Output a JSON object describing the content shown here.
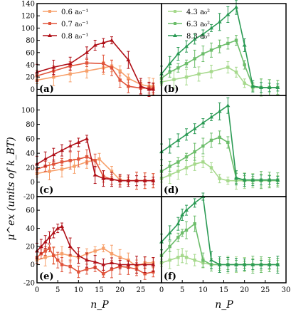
{
  "ylabel": "μ^ex (units of k_BT)",
  "xlabel": "n_P",
  "legend_left": [
    "0.6 a₀⁻¹",
    "0.7 a₀⁻¹",
    "0.8 a₀⁻¹"
  ],
  "legend_right": [
    "4.3 a₀²",
    "6.3 a₀²",
    "8.3 a₀²"
  ],
  "colors": {
    "orange": [
      "#f7a06b",
      "#e0533a",
      "#b01018"
    ],
    "green": [
      "#a6d98c",
      "#6cbd6a",
      "#2a9a54"
    ]
  },
  "chart_data": [
    {
      "panel": "(a)",
      "type": "line",
      "xlim": [
        0,
        30
      ],
      "ylim": [
        -10,
        140
      ],
      "yticks": [
        0,
        20,
        40,
        60,
        80,
        100,
        120,
        140
      ],
      "series": [
        {
          "name": "0.6 a₀⁻¹",
          "color": "#f7a06b",
          "x": [
            0,
            4,
            8,
            12,
            16,
            18,
            20,
            22,
            25,
            27,
            28
          ],
          "y": [
            15,
            20,
            25,
            30,
            35,
            38,
            30,
            18,
            8,
            5,
            5
          ]
        },
        {
          "name": "0.7 a₀⁻¹",
          "color": "#e0533a",
          "x": [
            0,
            4,
            8,
            12,
            16,
            18,
            20,
            22,
            25,
            27,
            28
          ],
          "y": [
            22,
            30,
            38,
            43,
            42,
            35,
            15,
            5,
            2,
            2,
            2
          ]
        },
        {
          "name": "0.8 a₀⁻¹",
          "color": "#b01018",
          "x": [
            0,
            4,
            8,
            12,
            14,
            16,
            18,
            22,
            25,
            27,
            28
          ],
          "y": [
            28,
            36,
            42,
            60,
            72,
            76,
            80,
            48,
            5,
            0,
            0
          ]
        }
      ]
    },
    {
      "panel": "(b)",
      "type": "line",
      "xlim": [
        0,
        30
      ],
      "ylim": [
        -10,
        140
      ],
      "series": [
        {
          "name": "4.3 a₀²",
          "color": "#a6d98c",
          "x": [
            0,
            3,
            6,
            9,
            12,
            16,
            18,
            20,
            22,
            24,
            26,
            28
          ],
          "y": [
            12,
            16,
            20,
            25,
            29,
            36,
            28,
            10,
            3,
            3,
            3,
            3
          ]
        },
        {
          "name": "6.3 a₀²",
          "color": "#6cbd6a",
          "x": [
            0,
            2,
            4,
            6,
            8,
            10,
            12,
            14,
            16,
            18,
            20,
            22,
            24,
            26,
            28
          ],
          "y": [
            18,
            28,
            35,
            42,
            50,
            58,
            64,
            70,
            75,
            80,
            40,
            5,
            3,
            3,
            3
          ]
        },
        {
          "name": "8.3 a₀²",
          "color": "#2a9a54",
          "x": [
            0,
            2,
            4,
            6,
            8,
            10,
            12,
            14,
            16,
            18,
            20,
            22,
            24,
            26,
            28
          ],
          "y": [
            25,
            42,
            58,
            70,
            82,
            90,
            100,
            110,
            122,
            134,
            72,
            5,
            3,
            3,
            3
          ]
        }
      ]
    },
    {
      "panel": "(c)",
      "type": "line",
      "xlim": [
        0,
        30
      ],
      "ylim": [
        -20,
        120
      ],
      "yticks": [
        -20,
        0,
        20,
        40,
        60,
        80,
        100
      ],
      "series": [
        {
          "name": "0.6 a₀⁻¹",
          "color": "#f7a06b",
          "x": [
            0,
            3,
            6,
            9,
            12,
            15,
            18,
            20,
            22,
            24,
            26,
            28
          ],
          "y": [
            12,
            15,
            18,
            22,
            28,
            32,
            15,
            3,
            2,
            2,
            2,
            2
          ]
        },
        {
          "name": "0.7 a₀⁻¹",
          "color": "#e0533a",
          "x": [
            0,
            2,
            4,
            6,
            8,
            10,
            12,
            14,
            16,
            18,
            20,
            22,
            24,
            26,
            28
          ],
          "y": [
            18,
            22,
            25,
            28,
            30,
            32,
            35,
            30,
            8,
            4,
            2,
            2,
            2,
            2,
            2
          ]
        },
        {
          "name": "0.8 a₀⁻¹",
          "color": "#b01018",
          "x": [
            0,
            2,
            4,
            6,
            8,
            10,
            12,
            14,
            16,
            18,
            20,
            22,
            24,
            26,
            28
          ],
          "y": [
            25,
            32,
            38,
            44,
            50,
            55,
            60,
            10,
            5,
            4,
            2,
            2,
            2,
            2,
            2
          ]
        }
      ]
    },
    {
      "panel": "(d)",
      "type": "line",
      "xlim": [
        0,
        30
      ],
      "ylim": [
        -20,
        120
      ],
      "series": [
        {
          "name": "4.3 a₀²",
          "color": "#a6d98c",
          "x": [
            0,
            2,
            4,
            6,
            8,
            10,
            12,
            14,
            16,
            18,
            20,
            22,
            24,
            26,
            28
          ],
          "y": [
            5,
            10,
            15,
            20,
            25,
            28,
            20,
            5,
            2,
            2,
            2,
            2,
            2,
            2,
            2
          ]
        },
        {
          "name": "6.3 a₀²",
          "color": "#6cbd6a",
          "x": [
            0,
            2,
            4,
            6,
            8,
            10,
            12,
            14,
            16,
            18,
            20,
            22,
            24,
            26,
            28
          ],
          "y": [
            15,
            22,
            28,
            35,
            42,
            50,
            58,
            62,
            55,
            5,
            3,
            3,
            3,
            3,
            3
          ]
        },
        {
          "name": "8.3 a₀²",
          "color": "#2a9a54",
          "x": [
            0,
            2,
            4,
            6,
            8,
            10,
            12,
            14,
            16,
            18,
            20,
            22,
            24,
            26,
            28
          ],
          "y": [
            42,
            50,
            58,
            66,
            74,
            82,
            90,
            98,
            106,
            6,
            3,
            3,
            3,
            3,
            3
          ]
        }
      ]
    },
    {
      "panel": "(e)",
      "type": "line",
      "xlim": [
        0,
        30
      ],
      "ylim": [
        -20,
        75
      ],
      "yticks": [
        -20,
        0,
        20,
        40,
        60
      ],
      "xticks": [
        0,
        5,
        10,
        15,
        20,
        25
      ],
      "series": [
        {
          "name": "0.6 a₀⁻¹",
          "color": "#f7a06b",
          "x": [
            0,
            2,
            4,
            6,
            8,
            10,
            12,
            14,
            16,
            18,
            20,
            22,
            24,
            26,
            28
          ],
          "y": [
            5,
            8,
            10,
            12,
            10,
            8,
            12,
            15,
            18,
            12,
            8,
            5,
            -2,
            2,
            2
          ]
        },
        {
          "name": "0.7 a₀⁻¹",
          "color": "#e0533a",
          "x": [
            0,
            1,
            2,
            3,
            4,
            5,
            6,
            8,
            10,
            12,
            14,
            16,
            18,
            20,
            22,
            24,
            26,
            28
          ],
          "y": [
            8,
            12,
            15,
            18,
            10,
            5,
            0,
            -2,
            -8,
            -5,
            -3,
            -10,
            -5,
            -2,
            -3,
            -5,
            -10,
            -8
          ]
        },
        {
          "name": "0.8 a₀⁻¹",
          "color": "#b01018",
          "x": [
            0,
            1,
            2,
            3,
            4,
            5,
            6,
            8,
            10,
            12,
            14,
            16,
            18,
            20,
            22,
            24,
            26,
            28
          ],
          "y": [
            15,
            20,
            25,
            30,
            35,
            40,
            42,
            20,
            10,
            5,
            3,
            0,
            2,
            0,
            0,
            0,
            0,
            0
          ]
        }
      ]
    },
    {
      "panel": "(f)",
      "type": "line",
      "xlim": [
        0,
        30
      ],
      "ylim": [
        -20,
        75
      ],
      "xticks": [
        0,
        5,
        10,
        15,
        20,
        25,
        30
      ],
      "series": [
        {
          "name": "4.3 a₀²",
          "color": "#a6d98c",
          "x": [
            0,
            2,
            4,
            5,
            6,
            8,
            10,
            12,
            14,
            16,
            18,
            20,
            22,
            24,
            26,
            28
          ],
          "y": [
            2,
            5,
            8,
            10,
            8,
            5,
            2,
            0,
            0,
            0,
            0,
            0,
            0,
            0,
            0,
            0
          ]
        },
        {
          "name": "6.3 a₀²",
          "color": "#6cbd6a",
          "x": [
            0,
            2,
            4,
            5,
            6,
            8,
            10,
            12,
            14,
            16,
            18,
            20,
            22,
            24,
            26,
            28
          ],
          "y": [
            10,
            20,
            30,
            35,
            38,
            45,
            5,
            0,
            0,
            0,
            0,
            0,
            0,
            0,
            0,
            0
          ]
        },
        {
          "name": "8.3 a₀²",
          "color": "#2a9a54",
          "x": [
            0,
            2,
            4,
            5,
            6,
            8,
            10,
            12,
            14,
            16,
            18,
            20,
            22,
            24,
            26,
            28
          ],
          "y": [
            25,
            35,
            45,
            55,
            60,
            68,
            75,
            5,
            0,
            0,
            0,
            0,
            0,
            0,
            0,
            0
          ]
        }
      ]
    }
  ]
}
